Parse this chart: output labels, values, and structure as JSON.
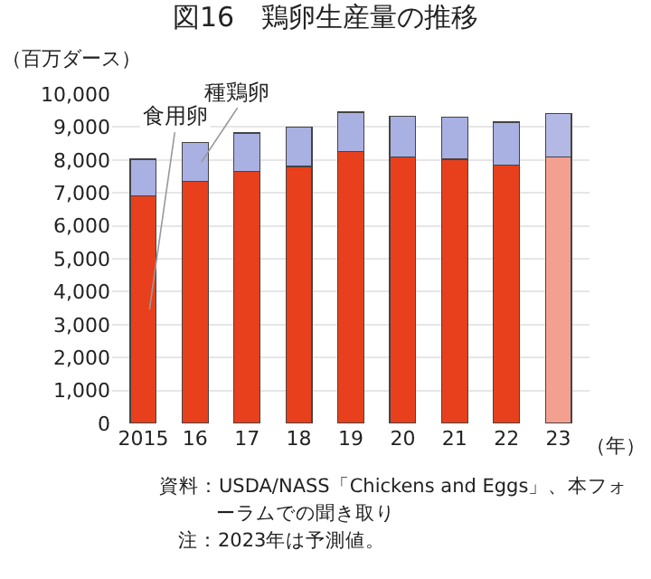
{
  "chart_data": {
    "type": "bar",
    "title": "図16　鶏卵生産量の推移",
    "ylabel": "（百万ダース）",
    "xlabel": "（年）",
    "categories": [
      "2015",
      "16",
      "17",
      "18",
      "19",
      "20",
      "21",
      "22",
      "23"
    ],
    "stacked": true,
    "series": [
      {
        "name": "食用卵",
        "colors": [
          "#e8401c",
          "#e8401c",
          "#e8401c",
          "#e8401c",
          "#e8401c",
          "#e8401c",
          "#e8401c",
          "#e8401c",
          "#f4a090"
        ],
        "values": [
          6920,
          7350,
          7650,
          7800,
          8260,
          8080,
          8020,
          7840,
          8090
        ]
      },
      {
        "name": "種鶏卵",
        "colors": [
          "#a9b0e2",
          "#a9b0e2",
          "#a9b0e2",
          "#a9b0e2",
          "#a9b0e2",
          "#a9b0e2",
          "#a9b0e2",
          "#a9b0e2",
          "#b4b8e4"
        ],
        "values": [
          1100,
          1170,
          1170,
          1190,
          1190,
          1240,
          1280,
          1310,
          1320
        ]
      }
    ],
    "ylim": [
      0,
      10000
    ],
    "yticks": [
      0,
      {
        "value": 1000,
        "label": "1,000"
      },
      {
        "value": 2000,
        "label": "2,000"
      },
      {
        "value": 3000,
        "label": "3,000"
      },
      {
        "value": 4000,
        "label": "4,000"
      },
      {
        "value": 5000,
        "label": "5,000"
      },
      {
        "value": 6000,
        "label": "6,000"
      },
      {
        "value": 7000,
        "label": "7,000"
      },
      {
        "value": 8000,
        "label": "8,000"
      },
      {
        "value": 9000,
        "label": "9,000"
      },
      {
        "value": 10000,
        "label": "10,000"
      }
    ],
    "grid": "y",
    "annotations": [
      "資料：USDA/NASS「Chickens and Eggs」、本フォーラムでの聞き取り",
      "注：2023年は予測値。"
    ]
  }
}
